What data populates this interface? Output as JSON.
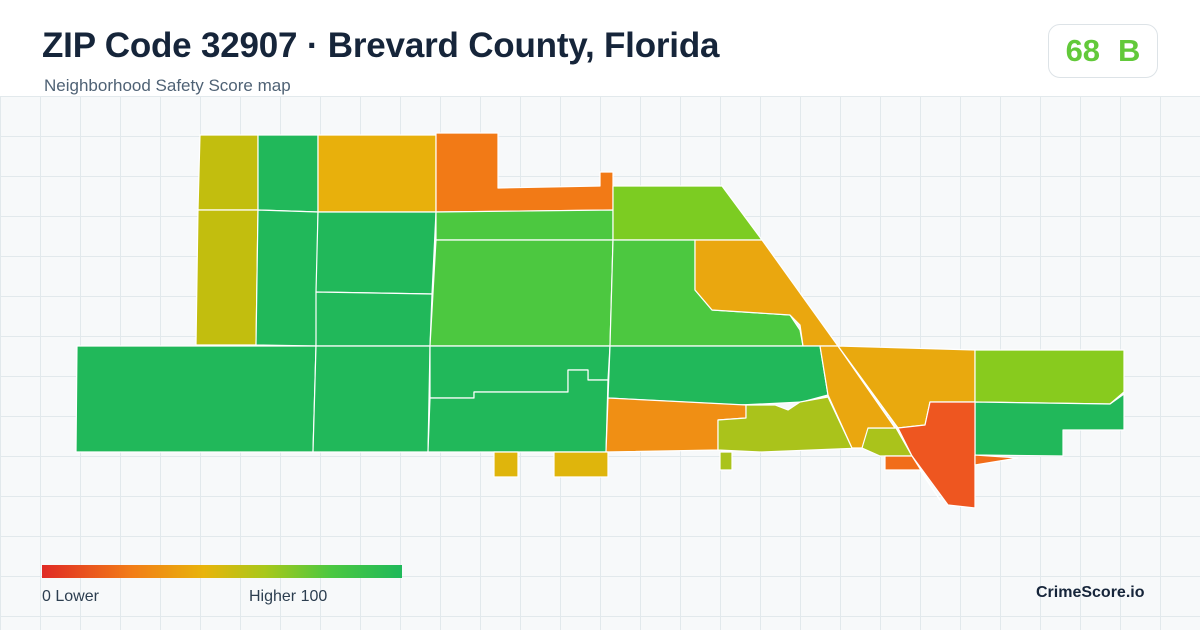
{
  "header": {
    "title": "ZIP Code 32907 · Brevard County, Florida",
    "subtitle": "Neighborhood Safety Score map"
  },
  "score": {
    "value": "68",
    "grade": "B",
    "color": "#62c93a"
  },
  "legend": {
    "low_label": "0  Lower",
    "high_label": "Higher  100",
    "min": 0,
    "max": 100,
    "color_low": "#e02a25",
    "color_high": "#1fb95a"
  },
  "brand": "CrimeScore.io",
  "map": {
    "region_colors": [
      "#c2be0e",
      "#21b85a",
      "#e8b00c",
      "#f27a16",
      "#7ccc22",
      "#4cc840",
      "#eaa70f",
      "#f08f14",
      "#aac31b",
      "#e9a90e",
      "#88cb1e",
      "#f16d19",
      "#ee5620",
      "#dfb50c"
    ]
  }
}
